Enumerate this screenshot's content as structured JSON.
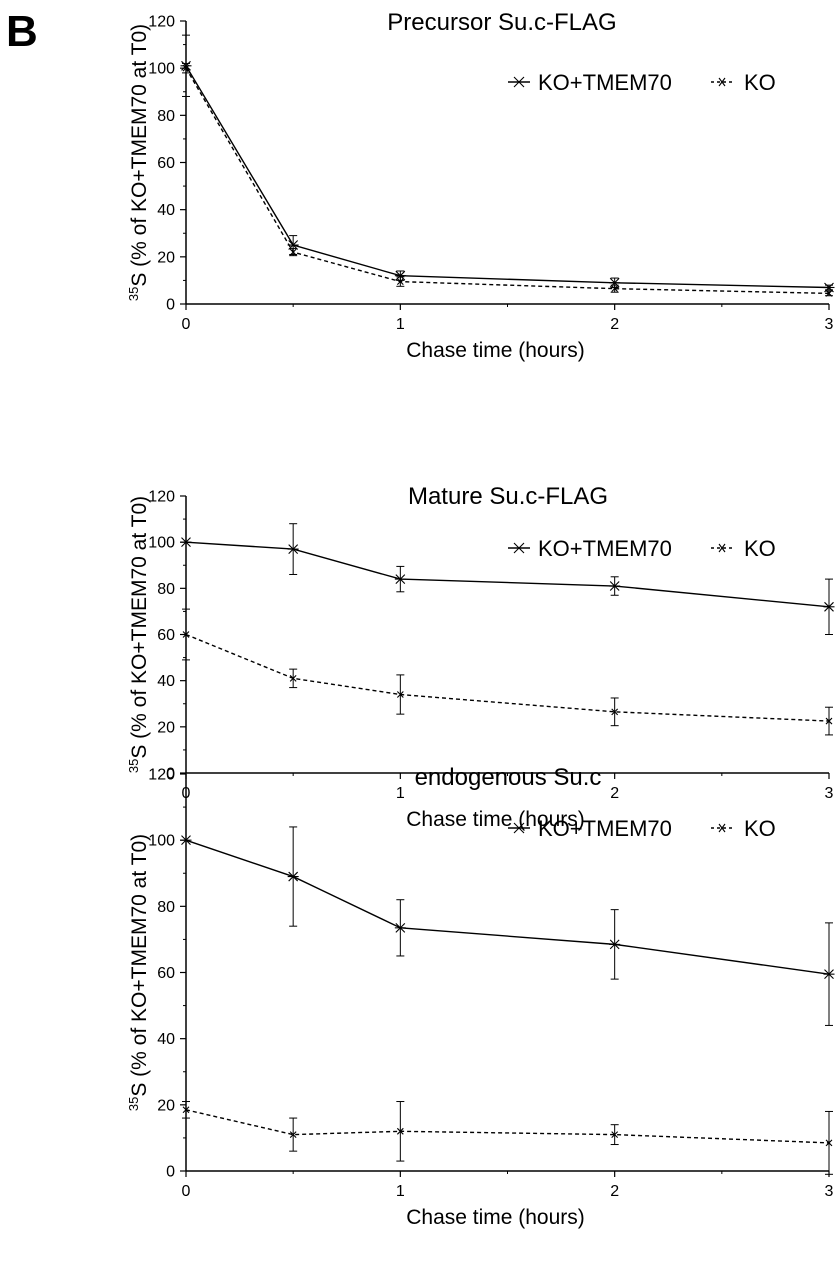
{
  "panel_label": "B",
  "chart_data": [
    {
      "type": "line",
      "title": "Precursor Su.c-FLAG",
      "xlabel": "Chase time (hours)",
      "ylabel_sup": "35",
      "ylabel": "S (% of KO+TMEM70 at T0)",
      "xlim": [
        0,
        3
      ],
      "ylim": [
        0,
        120
      ],
      "x_ticks": [
        0,
        1,
        2,
        3
      ],
      "y_ticks": [
        0,
        20,
        40,
        60,
        80,
        100,
        120
      ],
      "grid": false,
      "legend": "top-right",
      "series": [
        {
          "name": "KO+TMEM70",
          "style": "solid",
          "x": [
            0,
            0.5,
            1,
            2,
            3
          ],
          "y": [
            101,
            25,
            12,
            9,
            7
          ],
          "error": [
            13,
            4,
            2,
            2,
            1
          ]
        },
        {
          "name": "KO",
          "style": "dashed",
          "x": [
            0,
            0.5,
            1,
            2,
            3
          ],
          "y": [
            100,
            22,
            9.5,
            6.5,
            4.5
          ],
          "error": [
            2,
            1.5,
            2,
            1.5,
            1
          ]
        }
      ]
    },
    {
      "type": "line",
      "title": "Mature Su.c-FLAG",
      "xlabel": "Chase time (hours)",
      "ylabel_sup": "35",
      "ylabel": "S (% of KO+TMEM70 at T0)",
      "xlim": [
        0,
        3
      ],
      "ylim": [
        0,
        120
      ],
      "x_ticks": [
        0,
        1,
        2,
        3
      ],
      "y_ticks": [
        0,
        20,
        40,
        60,
        80,
        100,
        120
      ],
      "grid": false,
      "legend": "top-right",
      "series": [
        {
          "name": "KO+TMEM70",
          "style": "solid",
          "x": [
            0,
            0.5,
            1,
            2,
            3
          ],
          "y": [
            100,
            97,
            84,
            81,
            72
          ],
          "error": [
            0,
            11,
            5.5,
            4,
            12
          ]
        },
        {
          "name": "KO",
          "style": "dashed",
          "x": [
            0,
            0.5,
            1,
            2,
            3
          ],
          "y": [
            60,
            41,
            34,
            26.5,
            22.5
          ],
          "error": [
            11,
            4,
            8.5,
            6,
            6
          ]
        }
      ]
    },
    {
      "type": "line",
      "title": "endogenous Su.c",
      "xlabel": "Chase time (hours)",
      "ylabel_sup": "35",
      "ylabel": "S (% of KO+TMEM70 at T0)",
      "xlim": [
        0,
        3
      ],
      "ylim": [
        0,
        120
      ],
      "x_ticks": [
        0,
        1,
        2,
        3
      ],
      "y_ticks": [
        0,
        20,
        40,
        60,
        80,
        100,
        120
      ],
      "grid": false,
      "legend": "top-right",
      "series": [
        {
          "name": "KO+TMEM70",
          "style": "solid",
          "x": [
            0,
            0.5,
            1,
            2,
            3
          ],
          "y": [
            100,
            89,
            73.5,
            68.5,
            59.5
          ],
          "error": [
            0,
            15,
            8.5,
            10.5,
            15.5
          ]
        },
        {
          "name": "KO",
          "style": "dashed",
          "x": [
            0,
            0.5,
            1,
            2,
            3
          ],
          "y": [
            18.5,
            11,
            12,
            11,
            8.5
          ],
          "error": [
            2.5,
            5,
            9,
            3,
            9.5
          ]
        }
      ]
    }
  ]
}
